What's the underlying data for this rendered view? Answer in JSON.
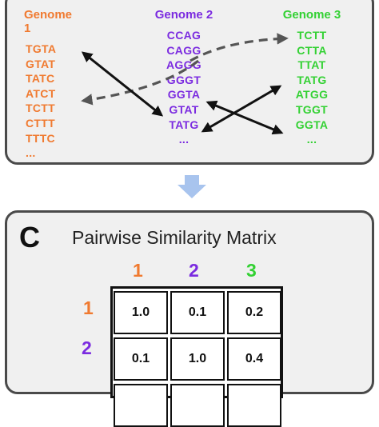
{
  "genomes": [
    {
      "name": "Genome 1",
      "color": "#f07a30",
      "kmers": [
        "TGTA",
        "GTAT",
        "TATC",
        "ATCT",
        "TCTT",
        "CTTT",
        "TTTC",
        "..."
      ]
    },
    {
      "name": "Genome 2",
      "color": "#7b2be0",
      "kmers": [
        "CCAG",
        "CAGG",
        "AGGG",
        "GGGT",
        "GGTA",
        "GTAT",
        "TATG",
        "..."
      ]
    },
    {
      "name": "Genome 3",
      "color": "#33d133",
      "kmers": [
        "TCTT",
        "CTTA",
        "TTAT",
        "TATG",
        "ATGG",
        "TGGT",
        "GGTA",
        "..."
      ]
    }
  ],
  "matrix": {
    "panel_letter": "C",
    "title": "Pairwise Similarity Matrix",
    "col_labels": [
      "1",
      "2",
      "3"
    ],
    "row_labels": [
      "1",
      "2"
    ],
    "values": [
      [
        "1.0",
        "0.1",
        "0.2"
      ],
      [
        "0.1",
        "1.0",
        "0.4"
      ]
    ]
  },
  "colors": {
    "arrow": "#111111",
    "dashed_arrow": "#555555",
    "down_arrow": "#a8c4ee",
    "panel_bg": "#f0f0f0"
  }
}
